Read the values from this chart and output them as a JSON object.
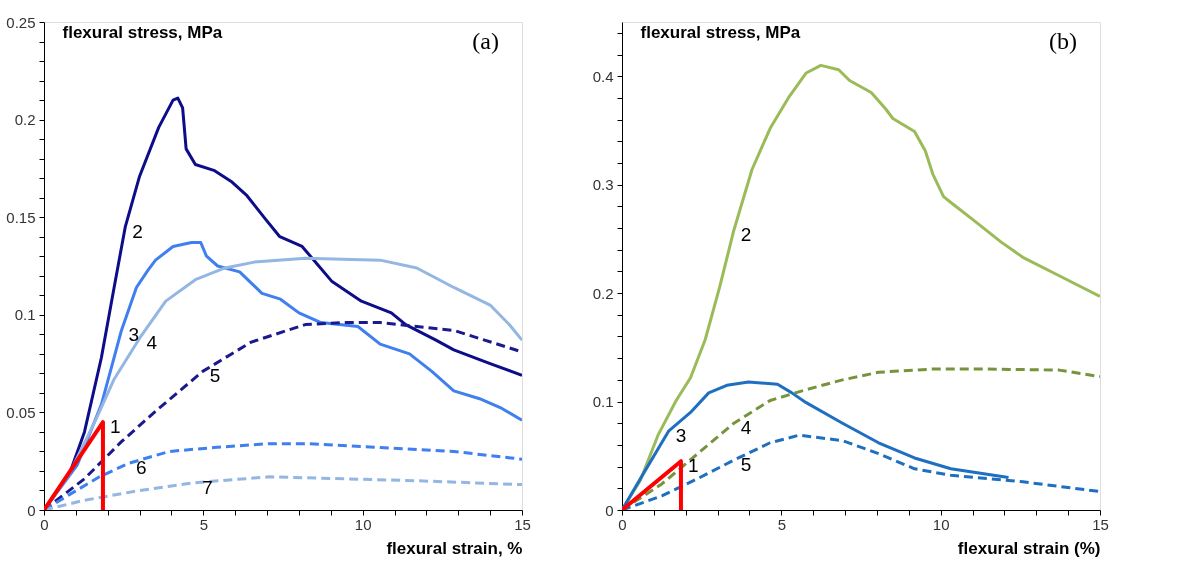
{
  "chart_data": [
    {
      "type": "line",
      "title": "(a)",
      "xlabel": "flexural strain, %",
      "ylabel": "flexural stress, MPa",
      "xlim": [
        0,
        15
      ],
      "ylim": [
        0,
        0.25
      ],
      "xticks": [
        0,
        {
          "value": 1,
          "label": null
        },
        {
          "value": 2,
          "label": null
        },
        {
          "value": 3,
          "label": null
        },
        {
          "value": 4,
          "label": null
        },
        5,
        {
          "value": 6,
          "label": null
        },
        {
          "value": 7,
          "label": null
        },
        {
          "value": 8,
          "label": null
        },
        {
          "value": 9,
          "label": null
        },
        10,
        {
          "value": 11,
          "label": null
        },
        {
          "value": 12,
          "label": null
        },
        {
          "value": 13,
          "label": null
        },
        {
          "value": 14,
          "label": null
        },
        15
      ],
      "yticks": [
        0,
        {
          "value": 0.01,
          "label": null
        },
        {
          "value": 0.02,
          "label": null
        },
        {
          "value": 0.03,
          "label": null
        },
        {
          "value": 0.04,
          "label": null
        },
        0.05,
        {
          "value": 0.06,
          "label": null
        },
        {
          "value": 0.07,
          "label": null
        },
        {
          "value": 0.08,
          "label": null
        },
        {
          "value": 0.09,
          "label": null
        },
        0.1,
        {
          "value": 0.11,
          "label": null
        },
        {
          "value": 0.12,
          "label": null
        },
        {
          "value": 0.13,
          "label": null
        },
        {
          "value": 0.14,
          "label": null
        },
        0.15,
        {
          "value": 0.16,
          "label": null
        },
        {
          "value": 0.17,
          "label": null
        },
        {
          "value": 0.18,
          "label": null
        },
        {
          "value": 0.19,
          "label": null
        },
        0.2,
        {
          "value": 0.21,
          "label": null
        },
        {
          "value": 0.22,
          "label": null
        },
        {
          "value": 0.23,
          "label": null
        },
        {
          "value": 0.24,
          "label": null
        },
        0.25
      ],
      "grid": false,
      "marker": "none",
      "line_style": "solid",
      "series": [
        {
          "name": "2",
          "color": "#0d0d8a",
          "x": [
            0,
            0.81,
            1.27,
            1.8,
            2.2,
            2.55,
            3.0,
            3.6,
            4.05,
            4.2,
            4.35,
            4.46,
            4.75,
            5.33,
            5.9,
            6.37,
            6.95,
            7.4,
            8.1,
            8.57,
            9.04,
            9.96,
            10.9,
            11.35,
            12.3,
            12.86,
            14.0,
            15
          ],
          "values": [
            0,
            0.019,
            0.04,
            0.078,
            0.114,
            0.145,
            0.171,
            0.196,
            0.21,
            0.211,
            0.206,
            0.185,
            0.177,
            0.174,
            0.168,
            0.161,
            0.149,
            0.14,
            0.135,
            0.126,
            0.117,
            0.107,
            0.101,
            0.095,
            0.087,
            0.082,
            0.075,
            0.069
          ]
        },
        {
          "name": "3",
          "color": "#3f7fef",
          "x": [
            0,
            1.04,
            1.8,
            2.43,
            2.9,
            3.27,
            3.5,
            4.05,
            4.63,
            4.92,
            5.1,
            5.45,
            6.14,
            6.84,
            7.42,
            8.0,
            8.69,
            9.85,
            10.55,
            11.47,
            12.17,
            12.86,
            13.67,
            14.37,
            15
          ],
          "values": [
            0,
            0.023,
            0.054,
            0.092,
            0.114,
            0.123,
            0.128,
            0.135,
            0.137,
            0.137,
            0.13,
            0.125,
            0.122,
            0.111,
            0.108,
            0.101,
            0.096,
            0.094,
            0.085,
            0.08,
            0.071,
            0.061,
            0.057,
            0.052,
            0.046
          ]
        },
        {
          "name": "4",
          "color": "#93b6e3",
          "x": [
            0,
            0.81,
            1.62,
            2.2,
            3.0,
            3.82,
            4.75,
            5.68,
            6.6,
            8.2,
            10.55,
            11.7,
            12.86,
            14.0,
            14.6,
            15
          ],
          "values": [
            0,
            0.019,
            0.046,
            0.067,
            0.088,
            0.107,
            0.118,
            0.124,
            0.127,
            0.129,
            0.128,
            0.124,
            0.114,
            0.105,
            0.095,
            0.087
          ]
        },
        {
          "name": "5",
          "color": "#1a1a8c",
          "line_style": "dashed",
          "x": [
            0,
            1.27,
            2.43,
            3.6,
            4.98,
            6.5,
            8.2,
            9.4,
            10.55,
            12.86,
            15
          ],
          "values": [
            0,
            0.016,
            0.035,
            0.052,
            0.071,
            0.086,
            0.095,
            0.096,
            0.096,
            0.092,
            0.081
          ]
        },
        {
          "name": "6",
          "color": "#3f7fef",
          "line_style": "dashed",
          "x": [
            0,
            0.81,
            1.74,
            2.67,
            3.94,
            5.33,
            7.07,
            8.2,
            10.55,
            12.86,
            15
          ],
          "values": [
            0,
            0.008,
            0.017,
            0.024,
            0.03,
            0.032,
            0.034,
            0.034,
            0.032,
            0.03,
            0.026
          ]
        },
        {
          "name": "7",
          "color": "#93b6e3",
          "line_style": "dashed",
          "x": [
            0,
            1.27,
            3.0,
            4.75,
            7.07,
            9.4,
            11.7,
            15
          ],
          "values": [
            0,
            0.005,
            0.01,
            0.014,
            0.017,
            0.016,
            0.015,
            0.013
          ]
        },
        {
          "name": "1",
          "color": "#ff0000",
          "x": [
            0,
            1.85,
            1.85
          ],
          "values": [
            0,
            0.045,
            0
          ]
        }
      ]
    },
    {
      "type": "line",
      "title": "(b)",
      "xlabel": "flexural strain  (%)",
      "ylabel": "flexural stress, MPa",
      "xlim": [
        0,
        15
      ],
      "ylim": [
        0,
        0.45
      ],
      "xticks": [
        0,
        {
          "value": 1,
          "label": null
        },
        {
          "value": 2,
          "label": null
        },
        {
          "value": 3,
          "label": null
        },
        {
          "value": 4,
          "label": null
        },
        5,
        {
          "value": 6,
          "label": null
        },
        {
          "value": 7,
          "label": null
        },
        {
          "value": 8,
          "label": null
        },
        {
          "value": 9,
          "label": null
        },
        10,
        {
          "value": 11,
          "label": null
        },
        {
          "value": 12,
          "label": null
        },
        {
          "value": 13,
          "label": null
        },
        {
          "value": 14,
          "label": null
        },
        15
      ],
      "yticks": [
        0,
        {
          "value": 0.02,
          "label": null
        },
        {
          "value": 0.04,
          "label": null
        },
        {
          "value": 0.06,
          "label": null
        },
        {
          "value": 0.08,
          "label": null
        },
        0.1,
        {
          "value": 0.12,
          "label": null
        },
        {
          "value": 0.14,
          "label": null
        },
        {
          "value": 0.16,
          "label": null
        },
        {
          "value": 0.18,
          "label": null
        },
        0.2,
        {
          "value": 0.22,
          "label": null
        },
        {
          "value": 0.24,
          "label": null
        },
        {
          "value": 0.26,
          "label": null
        },
        {
          "value": 0.28,
          "label": null
        },
        0.3,
        {
          "value": 0.32,
          "label": null
        },
        {
          "value": 0.34,
          "label": null
        },
        {
          "value": 0.36,
          "label": null
        },
        {
          "value": 0.38,
          "label": null
        },
        0.4,
        {
          "value": 0.42,
          "label": null
        },
        {
          "value": 0.44,
          "label": null
        }
      ],
      "grid": false,
      "marker": "none",
      "line_style": "solid",
      "series": [
        {
          "name": "2",
          "color": "#9bbb59",
          "x": [
            0,
            0.57,
            1.13,
            1.7,
            2.15,
            2.61,
            3.06,
            3.51,
            4.08,
            4.65,
            5.22,
            5.78,
            6.24,
            6.8,
            7.14,
            7.82,
            8.27,
            8.5,
            9.18,
            9.52,
            9.75,
            10.09,
            10.43,
            11.0,
            11.9,
            12.58,
            13.72,
            15
          ],
          "values": [
            0,
            0.027,
            0.069,
            0.101,
            0.122,
            0.157,
            0.205,
            0.258,
            0.314,
            0.352,
            0.38,
            0.403,
            0.41,
            0.406,
            0.396,
            0.385,
            0.37,
            0.361,
            0.349,
            0.331,
            0.31,
            0.289,
            0.281,
            0.268,
            0.247,
            0.233,
            0.216,
            0.197
          ]
        },
        {
          "name": "3",
          "color": "#1f6fc0",
          "x": [
            0,
            0.68,
            1.47,
            2.15,
            2.72,
            3.29,
            3.97,
            4.88,
            5.33,
            5.78,
            6.92,
            8.05,
            9.18,
            10.32,
            12.13
          ],
          "values": [
            0,
            0.034,
            0.073,
            0.09,
            0.108,
            0.115,
            0.118,
            0.116,
            0.108,
            0.099,
            0.08,
            0.062,
            0.048,
            0.038,
            0.03
          ]
        },
        {
          "name": "4",
          "color": "#77933c",
          "line_style": "dashed",
          "x": [
            0,
            1.25,
            2.38,
            3.51,
            4.65,
            5.78,
            6.92,
            8.05,
            9.75,
            11.45,
            13.72,
            15
          ],
          "values": [
            0,
            0.024,
            0.052,
            0.08,
            0.101,
            0.111,
            0.12,
            0.127,
            0.13,
            0.13,
            0.129,
            0.123
          ]
        },
        {
          "name": "5",
          "color": "#1f6fc0",
          "line_style": "dashed",
          "x": [
            0,
            1.25,
            2.38,
            3.51,
            4.65,
            5.56,
            6.92,
            8.05,
            9.18,
            10.32,
            12.58,
            15
          ],
          "values": [
            0,
            0.013,
            0.029,
            0.046,
            0.062,
            0.069,
            0.064,
            0.052,
            0.038,
            0.032,
            0.026,
            0.017
          ]
        },
        {
          "name": "1",
          "color": "#ff0000",
          "x": [
            0,
            1.85,
            1.85
          ],
          "values": [
            0,
            0.045,
            0
          ]
        }
      ]
    }
  ]
}
